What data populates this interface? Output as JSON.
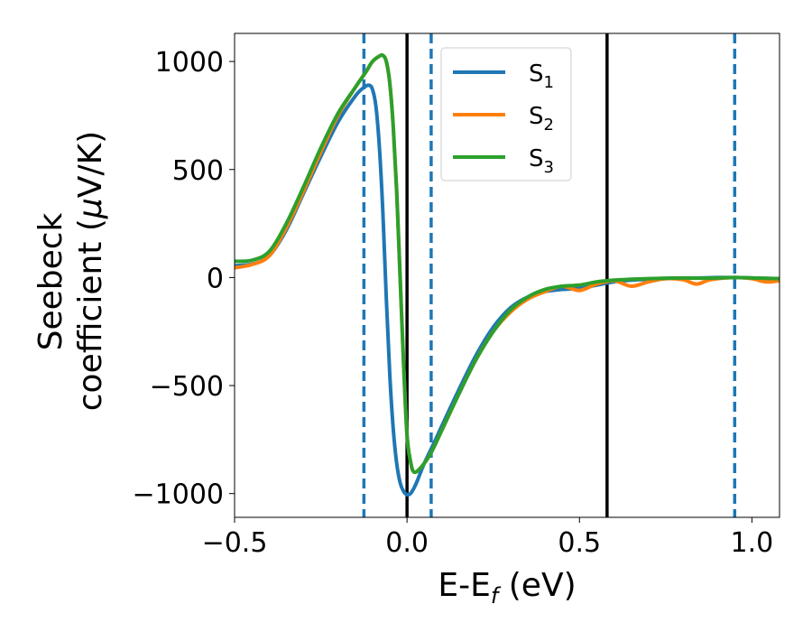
{
  "chart_data": {
    "type": "line",
    "xlabel_main": "E-E",
    "xlabel_sub": "f",
    "xlabel_unit": " (eV)",
    "ylabel_line1": "Seebeck",
    "ylabel_line2_pre": "coefficient  (",
    "ylabel_mu": "μ",
    "ylabel_line2_post": "V/K)",
    "xlim": [
      -0.5,
      1.08
    ],
    "ylim": [
      -1110,
      1130
    ],
    "xticks": [
      {
        "value": -0.5,
        "label": "−0.5"
      },
      {
        "value": 0.0,
        "label": "0.0"
      },
      {
        "value": 0.5,
        "label": "0.5"
      },
      {
        "value": 1.0,
        "label": "1.0"
      }
    ],
    "yticks": [
      {
        "value": 1000,
        "label": "1000"
      },
      {
        "value": 500,
        "label": "500"
      },
      {
        "value": 0,
        "label": "0"
      },
      {
        "value": -500,
        "label": "−500"
      },
      {
        "value": -1000,
        "label": "−1000"
      }
    ],
    "legend_position": "top-right",
    "vlines_solid": [
      0.0,
      0.58
    ],
    "vlines_dashed": [
      -0.125,
      0.07,
      0.95
    ],
    "vline_solid_color": "#000000",
    "vline_dashed_color": "#1f77b4",
    "series": [
      {
        "name": "S",
        "sub": "1",
        "color": "#1f77b4",
        "points": [
          [
            -0.5,
            55
          ],
          [
            -0.45,
            62
          ],
          [
            -0.4,
            100
          ],
          [
            -0.35,
            220
          ],
          [
            -0.3,
            390
          ],
          [
            -0.25,
            560
          ],
          [
            -0.2,
            720
          ],
          [
            -0.15,
            840
          ],
          [
            -0.125,
            880
          ],
          [
            -0.11,
            890
          ],
          [
            -0.1,
            870
          ],
          [
            -0.09,
            790
          ],
          [
            -0.08,
            600
          ],
          [
            -0.07,
            300
          ],
          [
            -0.06,
            -100
          ],
          [
            -0.05,
            -450
          ],
          [
            -0.04,
            -700
          ],
          [
            -0.03,
            -860
          ],
          [
            -0.02,
            -950
          ],
          [
            -0.01,
            -990
          ],
          [
            0.0,
            -1005
          ],
          [
            0.01,
            -1000
          ],
          [
            0.02,
            -975
          ],
          [
            0.03,
            -940
          ],
          [
            0.05,
            -860
          ],
          [
            0.08,
            -760
          ],
          [
            0.1,
            -690
          ],
          [
            0.15,
            -520
          ],
          [
            0.2,
            -360
          ],
          [
            0.25,
            -230
          ],
          [
            0.3,
            -140
          ],
          [
            0.35,
            -90
          ],
          [
            0.4,
            -65
          ],
          [
            0.45,
            -55
          ],
          [
            0.5,
            -50
          ],
          [
            0.55,
            -35
          ],
          [
            0.6,
            -20
          ],
          [
            0.65,
            -12
          ],
          [
            0.7,
            -8
          ],
          [
            0.75,
            -5
          ],
          [
            0.8,
            -3
          ],
          [
            0.85,
            -2
          ],
          [
            0.9,
            0
          ],
          [
            0.95,
            0
          ],
          [
            1.0,
            -2
          ],
          [
            1.08,
            -5
          ]
        ]
      },
      {
        "name": "S",
        "sub": "2",
        "color": "#ff7f0e",
        "points": [
          [
            -0.5,
            45
          ],
          [
            -0.45,
            60
          ],
          [
            -0.4,
            100
          ],
          [
            -0.35,
            230
          ],
          [
            -0.3,
            400
          ],
          [
            -0.25,
            580
          ],
          [
            -0.2,
            750
          ],
          [
            -0.15,
            880
          ],
          [
            -0.12,
            950
          ],
          [
            -0.1,
            1000
          ],
          [
            -0.08,
            1025
          ],
          [
            -0.07,
            1028
          ],
          [
            -0.06,
            1000
          ],
          [
            -0.05,
            900
          ],
          [
            -0.04,
            700
          ],
          [
            -0.03,
            400
          ],
          [
            -0.02,
            0
          ],
          [
            -0.01,
            -400
          ],
          [
            0.0,
            -730
          ],
          [
            0.01,
            -850
          ],
          [
            0.02,
            -900
          ],
          [
            0.04,
            -880
          ],
          [
            0.07,
            -810
          ],
          [
            0.1,
            -710
          ],
          [
            0.15,
            -540
          ],
          [
            0.2,
            -380
          ],
          [
            0.25,
            -250
          ],
          [
            0.3,
            -160
          ],
          [
            0.35,
            -100
          ],
          [
            0.4,
            -65
          ],
          [
            0.45,
            -40
          ],
          [
            0.5,
            -60
          ],
          [
            0.55,
            -30
          ],
          [
            0.6,
            -15
          ],
          [
            0.65,
            -40
          ],
          [
            0.7,
            -20
          ],
          [
            0.75,
            -5
          ],
          [
            0.8,
            -10
          ],
          [
            0.84,
            -30
          ],
          [
            0.88,
            -10
          ],
          [
            0.95,
            0
          ],
          [
            1.0,
            -5
          ],
          [
            1.04,
            -20
          ],
          [
            1.08,
            -15
          ]
        ]
      },
      {
        "name": "S",
        "sub": "3",
        "color": "#2ca02c",
        "points": [
          [
            -0.5,
            75
          ],
          [
            -0.45,
            80
          ],
          [
            -0.4,
            120
          ],
          [
            -0.35,
            250
          ],
          [
            -0.3,
            420
          ],
          [
            -0.25,
            600
          ],
          [
            -0.2,
            760
          ],
          [
            -0.15,
            880
          ],
          [
            -0.12,
            950
          ],
          [
            -0.1,
            1000
          ],
          [
            -0.08,
            1025
          ],
          [
            -0.07,
            1028
          ],
          [
            -0.06,
            1000
          ],
          [
            -0.05,
            900
          ],
          [
            -0.04,
            700
          ],
          [
            -0.03,
            400
          ],
          [
            -0.02,
            0
          ],
          [
            -0.01,
            -400
          ],
          [
            0.0,
            -730
          ],
          [
            0.01,
            -850
          ],
          [
            0.02,
            -900
          ],
          [
            0.04,
            -880
          ],
          [
            0.07,
            -810
          ],
          [
            0.1,
            -710
          ],
          [
            0.15,
            -540
          ],
          [
            0.2,
            -380
          ],
          [
            0.25,
            -250
          ],
          [
            0.3,
            -150
          ],
          [
            0.35,
            -90
          ],
          [
            0.4,
            -55
          ],
          [
            0.45,
            -40
          ],
          [
            0.5,
            -35
          ],
          [
            0.55,
            -20
          ],
          [
            0.6,
            -12
          ],
          [
            0.65,
            -8
          ],
          [
            0.7,
            -5
          ],
          [
            0.75,
            -3
          ],
          [
            0.8,
            -2
          ],
          [
            0.85,
            -3
          ],
          [
            0.9,
            -2
          ],
          [
            0.95,
            0
          ],
          [
            1.0,
            -2
          ],
          [
            1.08,
            -5
          ]
        ]
      }
    ]
  }
}
